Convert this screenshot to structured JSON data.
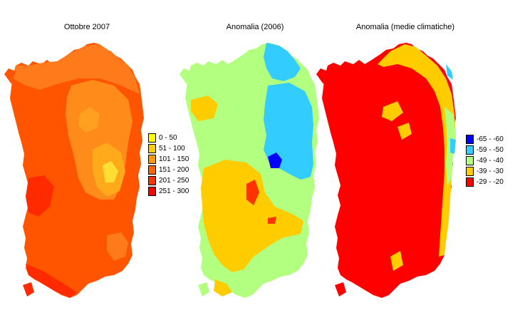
{
  "maps": [
    {
      "title": "Ottobre 2007",
      "legend": [
        {
          "label": "0 - 50",
          "color": "#ffff00"
        },
        {
          "label": "51 - 100",
          "color": "#ffcc00"
        },
        {
          "label": "101 - 150",
          "color": "#ff9900"
        },
        {
          "label": "151 - 200",
          "color": "#ff6600"
        },
        {
          "label": "201 - 250",
          "color": "#ff3300"
        },
        {
          "label": "251 - 300",
          "color": "#ff0000"
        }
      ]
    },
    {
      "title": "Anomalia (2006)"
    },
    {
      "title": "Anomalia (medie climatiche)",
      "legend": [
        {
          "label": "-65 - -60",
          "color": "#0000ff"
        },
        {
          "label": "-59 - -50",
          "color": "#33ccff"
        },
        {
          "label": "-49 - -40",
          "color": "#b3ff80"
        },
        {
          "label": "-39 - -30",
          "color": "#ffcc00"
        },
        {
          "label": "-29 - -20",
          "color": "#ff0000"
        }
      ]
    }
  ]
}
